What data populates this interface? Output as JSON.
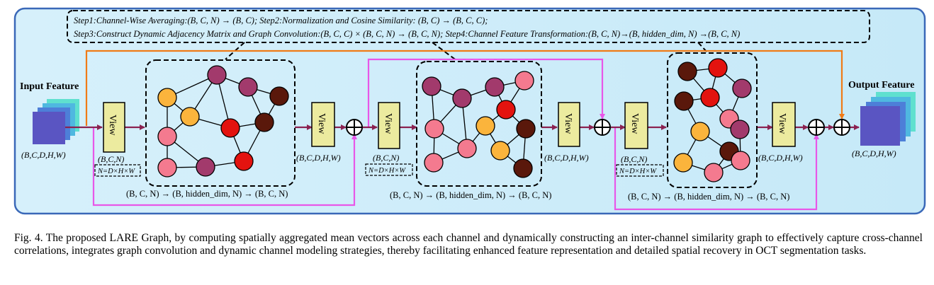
{
  "steps": {
    "line1": "Step1:Channel-Wise Averaging:(B, C, N) → (B, C);  Step2:Normalization and Cosine Similarity: (B, C) → (B, C, C);",
    "line2": "Step3:Construct Dynamic Adjacency Matrix and Graph Convolution:(B, C, C) × (B, C, N) → (B, C, N);  Step4:Channel Feature Transformation:(B, C, N)→(B, hidden_dim, N) →(B, C, N)"
  },
  "input": {
    "title": "Input Feature",
    "shape": "(B,C,D,H,W)"
  },
  "output": {
    "title": "Output Feature",
    "shape": "(B,C,D,H,W)"
  },
  "view_label": "View",
  "shapes": {
    "bcn": "(B,C,N)",
    "n_def": "N=D×H×W",
    "bcdhw": "(B,C,D,H,W)",
    "transform": "(B, C, N) → (B, hidden_dim, N) → (B, C, N)"
  },
  "caption": "Fig. 4.  The proposed LARE Graph, by computing spatially aggregated mean vectors across each channel and dynamically constructing an inter-channel similarity graph to effectively capture cross-channel correlations, integrates graph convolution and dynamic channel modeling strategies, thereby facilitating enhanced feature representation and detailed spatial recovery in OCT segmentation tasks.",
  "colors": {
    "panel_bg": "#d4effb",
    "panel_border": "#3a68b8",
    "main_arrow": "#8b2251",
    "pink_line": "#e857e8",
    "orange_line": "#f07b16",
    "view_fill": "#eceb9f",
    "node_orange": "#fbb43c",
    "node_pink": "#f47a8f",
    "node_purple": "#a23a6c",
    "node_red": "#e3130f",
    "node_brown": "#5a180b",
    "cube": "#4d57c4"
  }
}
